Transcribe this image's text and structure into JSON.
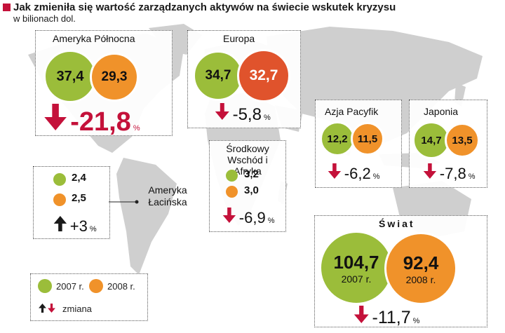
{
  "title": "Jak zmieniła się wartość zarządzanych aktywów na świecie wskutek kryzysu",
  "subtitle": "w bilionach dol.",
  "colors": {
    "y2007": "#9bbd3a",
    "y2008": "#f0922a",
    "europe2008": "#e0532c",
    "down": "#c4113a",
    "up": "#1a1a1a"
  },
  "legend": {
    "label_2007": "2007 r.",
    "label_2008": "2008 r.",
    "label_change": "zmiana"
  },
  "chart_data": {
    "type": "bubble",
    "unit": "bln USD",
    "series": [
      {
        "name": "2007 r."
      },
      {
        "name": "2008 r."
      }
    ],
    "regions": [
      {
        "name": "Ameryka Północna",
        "v2007": "37,4",
        "v2008": "29,3",
        "change": "-21,8",
        "pct": "%"
      },
      {
        "name": "Europa",
        "v2007": "34,7",
        "v2008": "32,7",
        "change": "-5,8",
        "pct": "%"
      },
      {
        "name": "Azja Pacyfik",
        "v2007": "12,2",
        "v2008": "11,5",
        "change": "-6,2",
        "pct": "%"
      },
      {
        "name": "Japonia",
        "v2007": "14,7",
        "v2008": "13,5",
        "change": "-7,8",
        "pct": "%"
      },
      {
        "name": "Środkowy Wschód i Afryka",
        "v2007": "3,2",
        "v2008": "3,0",
        "change": "-6,9",
        "pct": "%"
      },
      {
        "name": "Ameryka Łacińska",
        "v2007": "2,4",
        "v2008": "2,5",
        "change": "+3",
        "pct": "%"
      },
      {
        "name": "Świat",
        "v2007": "104,7",
        "v2008": "92,4",
        "change": "-11,7",
        "pct": "%",
        "sub2007": "2007 r.",
        "sub2008": "2008 r."
      }
    ]
  }
}
